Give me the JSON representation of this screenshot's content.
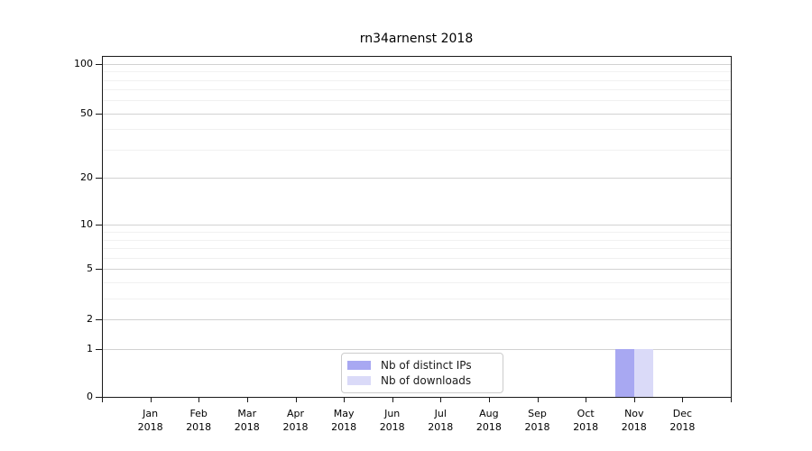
{
  "chart_data": {
    "type": "bar",
    "title": "rn34arnenst 2018",
    "xlabel": "",
    "ylabel": "",
    "year": "2018",
    "months": [
      "Jan",
      "Feb",
      "Mar",
      "Apr",
      "May",
      "Jun",
      "Jul",
      "Aug",
      "Sep",
      "Oct",
      "Nov",
      "Dec"
    ],
    "categories": [
      "Jan 2018",
      "Feb 2018",
      "Mar 2018",
      "Apr 2018",
      "May 2018",
      "Jun 2018",
      "Jul 2018",
      "Aug 2018",
      "Sep 2018",
      "Oct 2018",
      "Nov 2018",
      "Dec 2018"
    ],
    "series": [
      {
        "name": "Nb of distinct IPs",
        "color": "#a8a8f2",
        "values": [
          0,
          0,
          0,
          0,
          0,
          0,
          0,
          0,
          0,
          0,
          1,
          0
        ]
      },
      {
        "name": "Nb of downloads",
        "color": "#dadaf8",
        "values": [
          0,
          0,
          0,
          0,
          0,
          0,
          0,
          0,
          0,
          0,
          1,
          0
        ]
      }
    ],
    "yscale": "log1p",
    "ylim": [
      0,
      109
    ],
    "yticks": [
      0,
      1,
      2,
      5,
      10,
      20,
      50,
      100
    ],
    "yticks_minor": [
      3,
      4,
      6,
      7,
      8,
      9,
      30,
      40,
      60,
      70,
      80,
      90
    ],
    "grid": "horizontal",
    "legend_position": "lower center (inside plot)"
  },
  "colors": {
    "major_grid": "#d2d2d2",
    "minor_grid": "#f1f1f1",
    "axis": "#1a1a1a",
    "legend_border": "#cccccc",
    "background": "#ffffff"
  }
}
